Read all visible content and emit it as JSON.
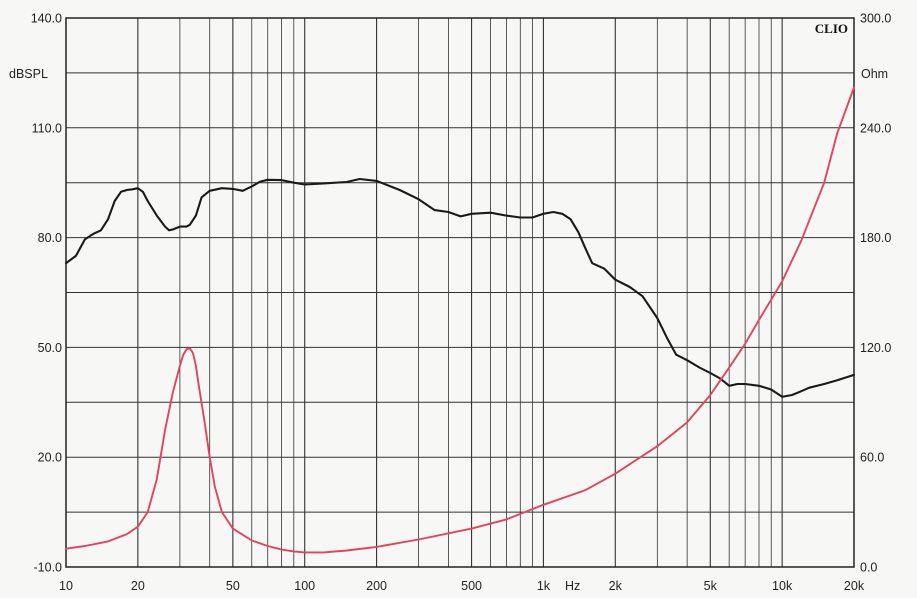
{
  "chart_data": {
    "type": "line",
    "brand": "CLIO",
    "x_scale": "log",
    "xlim": [
      10,
      20000
    ],
    "x_ticks": [
      {
        "value": 10,
        "label": "10"
      },
      {
        "value": 20,
        "label": "20"
      },
      {
        "value": 50,
        "label": "50"
      },
      {
        "value": 100,
        "label": "100"
      },
      {
        "value": 200,
        "label": "200"
      },
      {
        "value": 500,
        "label": "500"
      },
      {
        "value": 1000,
        "label": "1k"
      },
      {
        "value": 2000,
        "label": "2k"
      },
      {
        "value": 5000,
        "label": "5k"
      },
      {
        "value": 10000,
        "label": "10k"
      },
      {
        "value": 20000,
        "label": "20k"
      }
    ],
    "x_unit": "Hz",
    "y_left": {
      "unit": "dBSPL",
      "ylim": [
        -10,
        140
      ],
      "ticks": [
        {
          "value": -10,
          "label": "-10.0"
        },
        {
          "value": 20,
          "label": "20.0"
        },
        {
          "value": 50,
          "label": "50.0"
        },
        {
          "value": 80,
          "label": "80.0"
        },
        {
          "value": 110,
          "label": "110.0"
        },
        {
          "value": 140,
          "label": "140.0"
        }
      ]
    },
    "y_right": {
      "unit": "Ohm",
      "ylim": [
        0,
        300
      ],
      "ticks": [
        {
          "value": 0,
          "label": "0.0"
        },
        {
          "value": 60,
          "label": "60.0"
        },
        {
          "value": 120,
          "label": "120.0"
        },
        {
          "value": 180,
          "label": "180.0"
        },
        {
          "value": 240,
          "label": "240.0"
        },
        {
          "value": 300,
          "label": "300.0"
        }
      ]
    },
    "grid": true,
    "series": [
      {
        "axis": "left",
        "color": "#1a1a1a",
        "points": [
          [
            10,
            73
          ],
          [
            11,
            75
          ],
          [
            12,
            79.5
          ],
          [
            13,
            81
          ],
          [
            14,
            82
          ],
          [
            15,
            85
          ],
          [
            16,
            90
          ],
          [
            17,
            92.5
          ],
          [
            18,
            93
          ],
          [
            19,
            93.2
          ],
          [
            20,
            93.5
          ],
          [
            21,
            92.5
          ],
          [
            22,
            90
          ],
          [
            24,
            86
          ],
          [
            26,
            83
          ],
          [
            27,
            82
          ],
          [
            28,
            82.2
          ],
          [
            30,
            83
          ],
          [
            32,
            83
          ],
          [
            33,
            83.5
          ],
          [
            35,
            86
          ],
          [
            37,
            91
          ],
          [
            40,
            92.8
          ],
          [
            45,
            93.5
          ],
          [
            50,
            93.3
          ],
          [
            55,
            92.8
          ],
          [
            60,
            94
          ],
          [
            65,
            95.3
          ],
          [
            70,
            95.8
          ],
          [
            80,
            95.7
          ],
          [
            90,
            95
          ],
          [
            100,
            94.5
          ],
          [
            120,
            94.8
          ],
          [
            150,
            95.2
          ],
          [
            170,
            96
          ],
          [
            200,
            95.5
          ],
          [
            250,
            93
          ],
          [
            300,
            90.5
          ],
          [
            350,
            87.5
          ],
          [
            400,
            87
          ],
          [
            450,
            85.8
          ],
          [
            500,
            86.5
          ],
          [
            600,
            86.8
          ],
          [
            700,
            86
          ],
          [
            800,
            85.5
          ],
          [
            900,
            85.5
          ],
          [
            1000,
            86.5
          ],
          [
            1100,
            87
          ],
          [
            1200,
            86.5
          ],
          [
            1300,
            85
          ],
          [
            1400,
            81.5
          ],
          [
            1500,
            77
          ],
          [
            1600,
            73
          ],
          [
            1800,
            71.5
          ],
          [
            2000,
            68.5
          ],
          [
            2300,
            66.5
          ],
          [
            2600,
            64
          ],
          [
            3000,
            58
          ],
          [
            3300,
            52.5
          ],
          [
            3600,
            48
          ],
          [
            4000,
            46.5
          ],
          [
            4500,
            44.5
          ],
          [
            5000,
            43
          ],
          [
            5500,
            41.5
          ],
          [
            6000,
            39.5
          ],
          [
            6500,
            40
          ],
          [
            7000,
            40
          ],
          [
            8000,
            39.5
          ],
          [
            9000,
            38.5
          ],
          [
            10000,
            36.5
          ],
          [
            11000,
            37
          ],
          [
            12000,
            38
          ],
          [
            13000,
            39
          ],
          [
            15000,
            40
          ],
          [
            17000,
            41
          ],
          [
            20000,
            42.5
          ]
        ]
      },
      {
        "axis": "right",
        "color": "#e2445f",
        "points": [
          [
            10,
            10
          ],
          [
            12,
            11.5
          ],
          [
            15,
            14
          ],
          [
            18,
            18
          ],
          [
            20,
            22
          ],
          [
            22,
            30
          ],
          [
            24,
            48
          ],
          [
            26,
            75
          ],
          [
            28,
            95
          ],
          [
            30,
            110
          ],
          [
            31,
            116
          ],
          [
            32,
            119
          ],
          [
            33,
            119.5
          ],
          [
            34,
            117
          ],
          [
            35,
            110
          ],
          [
            36,
            99
          ],
          [
            38,
            80
          ],
          [
            40,
            60
          ],
          [
            42,
            44
          ],
          [
            45,
            30
          ],
          [
            50,
            21
          ],
          [
            60,
            14.5
          ],
          [
            70,
            11.5
          ],
          [
            80,
            9.5
          ],
          [
            90,
            8.5
          ],
          [
            100,
            8
          ],
          [
            120,
            8
          ],
          [
            150,
            9
          ],
          [
            200,
            11
          ],
          [
            300,
            15
          ],
          [
            500,
            21
          ],
          [
            700,
            26
          ],
          [
            1000,
            34
          ],
          [
            1500,
            42
          ],
          [
            2000,
            51
          ],
          [
            3000,
            66
          ],
          [
            4000,
            79
          ],
          [
            5000,
            94
          ],
          [
            6000,
            109
          ],
          [
            7000,
            122
          ],
          [
            8000,
            135
          ],
          [
            10000,
            156
          ],
          [
            12000,
            178
          ],
          [
            15000,
            210
          ],
          [
            17000,
            237
          ],
          [
            20000,
            262
          ]
        ]
      }
    ]
  }
}
